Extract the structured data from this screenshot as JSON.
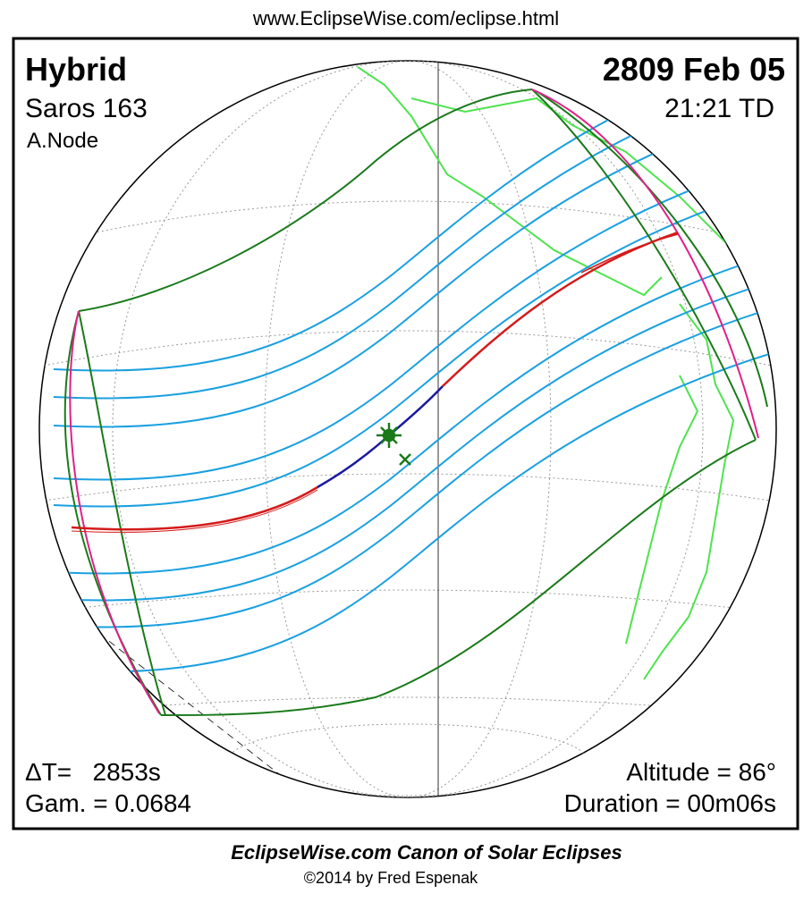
{
  "header": {
    "url": "www.EclipseWise.com/eclipse.html"
  },
  "eclipse": {
    "type": "Hybrid",
    "saros": "Saros 163",
    "node": "A.Node",
    "date": "2809 Feb 05",
    "time": "21:21 TD",
    "delta_t": "ΔT=   2853s",
    "gamma": "Gam. = 0.0684",
    "altitude": "Altitude = 86°",
    "duration": "Duration = 00m06s"
  },
  "footer": {
    "title": "EclipseWise.com Canon of Solar Eclipses",
    "copyright": "©2014 by Fred Espenak"
  }
}
